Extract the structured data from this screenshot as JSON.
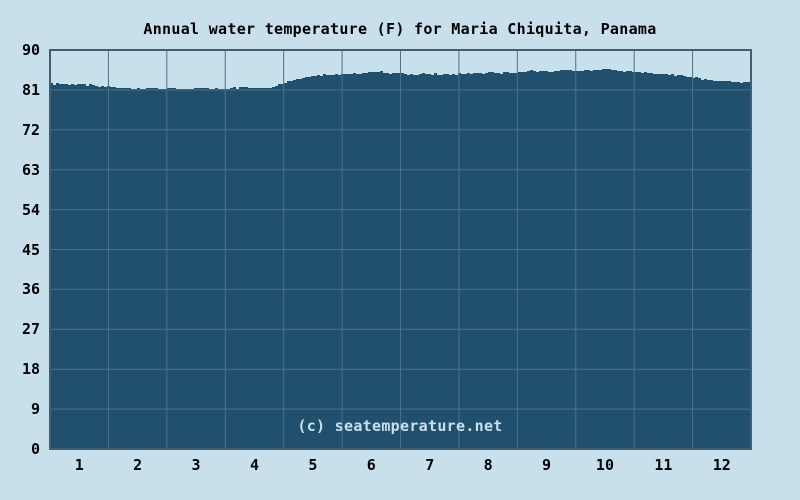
{
  "watermark": "(c) seatemperature.net",
  "colors": {
    "background": "#c8e0ec",
    "area_fill": "#21506e",
    "grid": "#4d7086",
    "border": "#3d6077",
    "text": "#000000",
    "watermark_text": "#c8e0ec"
  },
  "chart_data": {
    "type": "area",
    "title": "Annual water temperature (F) for Maria Chiquita, Panama",
    "xlabel": "",
    "ylabel": "",
    "unit": "F",
    "grid": true,
    "legend": "none",
    "ylim": [
      0,
      90
    ],
    "yticks": [
      90,
      81,
      72,
      63,
      54,
      45,
      36,
      27,
      18,
      9,
      0
    ],
    "xticks": [
      "1",
      "2",
      "3",
      "4",
      "5",
      "6",
      "7",
      "8",
      "9",
      "10",
      "11",
      "12"
    ],
    "categories": [
      "1",
      "2",
      "3",
      "4",
      "5",
      "6",
      "7",
      "8",
      "9",
      "10",
      "11",
      "12"
    ],
    "monthly_avg_f": [
      82.1,
      81.4,
      81.3,
      81.5,
      84.0,
      84.8,
      84.5,
      84.7,
      85.2,
      85.4,
      84.5,
      83.0
    ],
    "curve_points": [
      [
        0.0,
        82.4
      ],
      [
        0.2,
        82.2
      ],
      [
        0.45,
        82.3
      ],
      [
        0.7,
        82.0
      ],
      [
        1.0,
        81.7
      ],
      [
        1.3,
        81.4
      ],
      [
        1.65,
        81.4
      ],
      [
        2.0,
        81.3
      ],
      [
        2.4,
        81.2
      ],
      [
        2.75,
        81.3
      ],
      [
        3.0,
        81.3
      ],
      [
        3.35,
        81.5
      ],
      [
        3.6,
        81.4
      ],
      [
        3.8,
        81.8
      ],
      [
        4.0,
        82.5
      ],
      [
        4.2,
        83.5
      ],
      [
        4.45,
        84.1
      ],
      [
        4.7,
        84.4
      ],
      [
        5.0,
        84.7
      ],
      [
        5.2,
        84.6
      ],
      [
        5.4,
        85.0
      ],
      [
        5.55,
        85.2
      ],
      [
        5.75,
        84.9
      ],
      [
        6.0,
        84.7
      ],
      [
        6.25,
        84.5
      ],
      [
        6.5,
        84.6
      ],
      [
        6.75,
        84.4
      ],
      [
        7.0,
        84.6
      ],
      [
        7.3,
        84.7
      ],
      [
        7.55,
        84.9
      ],
      [
        7.8,
        84.8
      ],
      [
        8.0,
        84.9
      ],
      [
        8.2,
        85.3
      ],
      [
        8.5,
        85.2
      ],
      [
        8.75,
        85.3
      ],
      [
        9.0,
        85.3
      ],
      [
        9.25,
        85.4
      ],
      [
        9.5,
        85.6
      ],
      [
        9.75,
        85.3
      ],
      [
        10.0,
        85.1
      ],
      [
        10.3,
        84.7
      ],
      [
        10.55,
        84.4
      ],
      [
        10.8,
        84.2
      ],
      [
        11.0,
        83.8
      ],
      [
        11.2,
        83.3
      ],
      [
        11.45,
        83.0
      ],
      [
        11.65,
        82.9
      ],
      [
        11.85,
        82.7
      ],
      [
        12.0,
        82.8
      ]
    ]
  }
}
